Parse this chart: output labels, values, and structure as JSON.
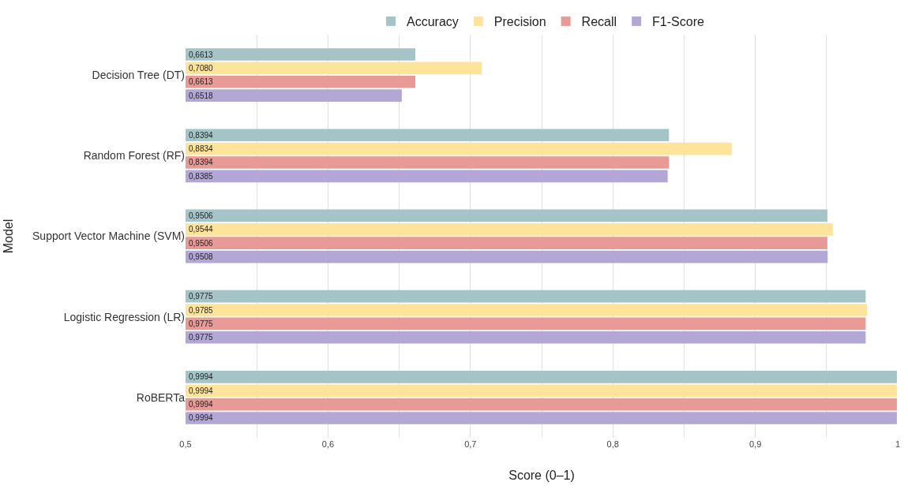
{
  "chart_data": {
    "type": "bar",
    "orientation": "horizontal",
    "xlabel": "Score (0–1)",
    "ylabel": "Model",
    "categories": [
      "Decision Tree (DT)",
      "Random Forest (RF)",
      "Support Vector Machine (SVM)",
      "Logistic Regression (LR)",
      "RoBERTa"
    ],
    "series": [
      {
        "name": "Accuracy",
        "color": "#a5c4c8",
        "values": [
          0.6613,
          0.8394,
          0.9506,
          0.9775,
          0.9994
        ],
        "value_labels": [
          "0,6613",
          "0,8394",
          "0,9506",
          "0,9775",
          "0,9994"
        ]
      },
      {
        "name": "Precision",
        "color": "#fde49a",
        "values": [
          0.708,
          0.8834,
          0.9544,
          0.9785,
          0.9994
        ],
        "value_labels": [
          "0,7080",
          "0,8834",
          "0,9544",
          "0,9785",
          "0,9994"
        ]
      },
      {
        "name": "Recall",
        "color": "#e89a96",
        "values": [
          0.6613,
          0.8394,
          0.9506,
          0.9775,
          0.9994
        ],
        "value_labels": [
          "0,6613",
          "0,8394",
          "0,9506",
          "0,9775",
          "0,9994"
        ]
      },
      {
        "name": "F1-Score",
        "color": "#b3a7d6",
        "values": [
          0.6518,
          0.8385,
          0.9508,
          0.9775,
          0.9994
        ],
        "value_labels": [
          "0,6518",
          "0,8385",
          "0,9508",
          "0,9775",
          "0,9994"
        ]
      }
    ],
    "xlim": [
      0.5,
      1
    ],
    "xticks": [
      {
        "value": 0.5,
        "label": "0,5"
      },
      {
        "value": 0.55,
        "label": null
      },
      {
        "value": 0.6,
        "label": "0,6"
      },
      {
        "value": 0.65,
        "label": null
      },
      {
        "value": 0.7,
        "label": "0,7"
      },
      {
        "value": 0.75,
        "label": null
      },
      {
        "value": 0.8,
        "label": "0,8"
      },
      {
        "value": 0.85,
        "label": null
      },
      {
        "value": 0.9,
        "label": "0,9"
      },
      {
        "value": 0.95,
        "label": null
      },
      {
        "value": 1,
        "label": "1"
      }
    ],
    "grid": "x",
    "legend": "top"
  }
}
